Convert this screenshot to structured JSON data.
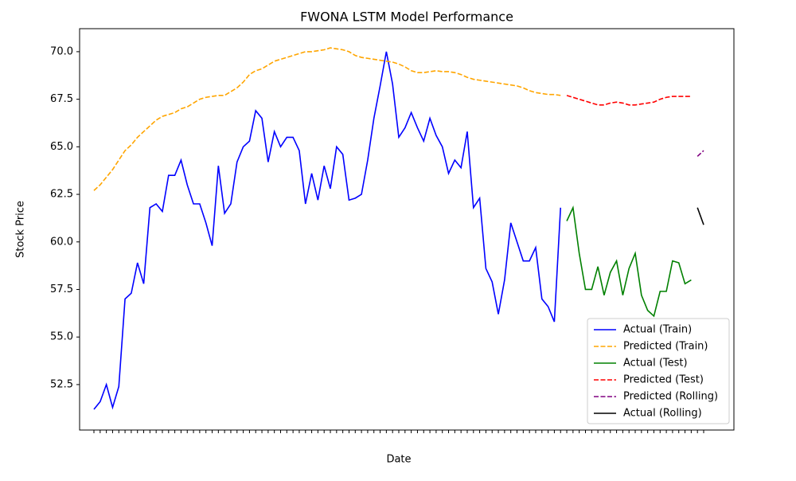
{
  "chart_data": {
    "type": "line",
    "title": "FWONA LSTM Model Performance",
    "x_label": "Date",
    "y_label": "Stock Price",
    "categories": [
      null,
      null,
      null,
      null,
      null,
      null,
      null,
      null,
      null,
      null,
      null,
      null,
      null,
      null,
      null,
      null,
      null,
      null,
      null,
      null,
      null,
      null,
      null,
      null,
      null,
      null,
      null,
      null,
      null,
      null,
      null,
      null,
      null,
      null,
      null,
      null,
      null,
      null,
      null,
      null,
      null,
      null,
      null,
      null,
      null,
      null,
      null,
      null,
      null,
      null,
      null,
      null,
      null,
      null,
      null,
      null,
      null,
      null,
      null,
      null,
      null,
      null,
      null,
      null,
      null,
      null,
      null,
      null,
      null,
      null,
      null,
      null,
      null,
      null,
      null,
      null,
      null,
      null,
      null,
      null,
      null,
      null,
      null,
      null,
      null,
      null,
      null,
      null,
      null,
      null,
      null,
      null,
      null,
      null,
      null,
      null,
      null,
      null,
      null
    ],
    "ylim": [
      50.11,
      71.21
    ],
    "yticks": [
      52.5,
      {
        "value": 55,
        "label": "55.0"
      },
      57.5,
      {
        "value": 60,
        "label": "60.0"
      },
      62.5,
      {
        "value": 65,
        "label": "65.0"
      },
      67.5,
      {
        "value": 70,
        "label": "70.0"
      }
    ],
    "legend": "lower right",
    "series": [
      {
        "name": "Actual (Train)",
        "color": "#0000ff",
        "linestyle": "solid",
        "values": [
          51.2,
          51.6,
          52.5,
          51.3,
          52.4,
          57.0,
          57.3,
          58.9,
          57.8,
          61.8,
          62.0,
          61.6,
          63.5,
          63.5,
          64.3,
          63.0,
          62.0,
          62.0,
          61.0,
          59.8,
          64.0,
          61.5,
          62.0,
          64.2,
          65.0,
          65.3,
          66.9,
          66.5,
          64.2,
          65.8,
          65.0,
          65.5,
          65.5,
          64.8,
          62.0,
          63.6,
          62.2,
          64.0,
          62.8,
          65.0,
          64.6,
          62.2,
          62.3,
          62.5,
          64.3,
          66.5,
          68.2,
          70.0,
          68.3,
          65.5,
          66.0,
          66.8,
          66.0,
          65.3,
          66.5,
          65.6,
          65.0,
          63.6,
          64.3,
          63.9,
          65.8,
          61.8,
          62.3,
          58.6,
          57.9,
          56.2,
          58.0,
          61.0,
          60.0,
          59.0,
          59.0,
          59.7,
          57.0,
          56.6,
          55.8,
          61.8,
          null,
          null,
          null,
          null,
          null,
          null,
          null,
          null,
          null,
          null,
          null,
          null,
          null,
          null,
          null,
          null,
          null,
          null,
          null,
          null,
          null,
          null,
          null
        ]
      },
      {
        "name": "Predicted (Train)",
        "color": "#ffa500",
        "linestyle": "dashed",
        "values": [
          62.7,
          63.0,
          63.4,
          63.8,
          64.3,
          64.8,
          65.1,
          65.5,
          65.8,
          66.1,
          66.4,
          66.6,
          66.7,
          66.8,
          67.0,
          67.1,
          67.3,
          67.5,
          67.6,
          67.65,
          67.7,
          67.7,
          67.9,
          68.1,
          68.4,
          68.8,
          69.0,
          69.1,
          69.3,
          69.5,
          69.6,
          69.7,
          69.8,
          69.9,
          70.0,
          70.0,
          70.05,
          70.1,
          70.2,
          70.15,
          70.1,
          70.0,
          69.8,
          69.7,
          69.65,
          69.6,
          69.55,
          69.5,
          69.45,
          69.35,
          69.2,
          69.0,
          68.9,
          68.9,
          68.95,
          69.0,
          68.95,
          68.95,
          68.9,
          68.8,
          68.65,
          68.55,
          68.5,
          68.45,
          68.4,
          68.35,
          68.3,
          68.25,
          68.2,
          68.1,
          67.95,
          67.85,
          67.8,
          67.75,
          67.75,
          67.7,
          null,
          null,
          null,
          null,
          null,
          null,
          null,
          null,
          null,
          null,
          null,
          null,
          null,
          null,
          null,
          null,
          null,
          null,
          null,
          null,
          null,
          null,
          null
        ]
      },
      {
        "name": "Actual (Test)",
        "color": "#008000",
        "linestyle": "solid",
        "values": [
          null,
          null,
          null,
          null,
          null,
          null,
          null,
          null,
          null,
          null,
          null,
          null,
          null,
          null,
          null,
          null,
          null,
          null,
          null,
          null,
          null,
          null,
          null,
          null,
          null,
          null,
          null,
          null,
          null,
          null,
          null,
          null,
          null,
          null,
          null,
          null,
          null,
          null,
          null,
          null,
          null,
          null,
          null,
          null,
          null,
          null,
          null,
          null,
          null,
          null,
          null,
          null,
          null,
          null,
          null,
          null,
          null,
          null,
          null,
          null,
          null,
          null,
          null,
          null,
          null,
          null,
          null,
          null,
          null,
          null,
          null,
          null,
          null,
          null,
          null,
          null,
          61.1,
          61.8,
          59.4,
          57.5,
          57.5,
          58.7,
          57.2,
          58.4,
          59.0,
          57.2,
          58.6,
          59.4,
          57.2,
          56.4,
          56.1,
          57.4,
          57.4,
          59.0,
          58.9,
          57.8,
          58.0,
          null,
          null
        ]
      },
      {
        "name": "Predicted (Test)",
        "color": "#ff0000",
        "linestyle": "dashed",
        "values": [
          null,
          null,
          null,
          null,
          null,
          null,
          null,
          null,
          null,
          null,
          null,
          null,
          null,
          null,
          null,
          null,
          null,
          null,
          null,
          null,
          null,
          null,
          null,
          null,
          null,
          null,
          null,
          null,
          null,
          null,
          null,
          null,
          null,
          null,
          null,
          null,
          null,
          null,
          null,
          null,
          null,
          null,
          null,
          null,
          null,
          null,
          null,
          null,
          null,
          null,
          null,
          null,
          null,
          null,
          null,
          null,
          null,
          null,
          null,
          null,
          null,
          null,
          null,
          null,
          null,
          null,
          null,
          null,
          null,
          null,
          null,
          null,
          null,
          null,
          null,
          null,
          67.7,
          67.6,
          67.5,
          67.4,
          67.3,
          67.2,
          67.2,
          67.3,
          67.35,
          67.3,
          67.2,
          67.2,
          67.25,
          67.3,
          67.35,
          67.5,
          67.6,
          67.65,
          67.65,
          67.65,
          67.65,
          null,
          null
        ]
      },
      {
        "name": "Predicted (Rolling)",
        "color": "#800080",
        "linestyle": "dashed",
        "values": [
          null,
          null,
          null,
          null,
          null,
          null,
          null,
          null,
          null,
          null,
          null,
          null,
          null,
          null,
          null,
          null,
          null,
          null,
          null,
          null,
          null,
          null,
          null,
          null,
          null,
          null,
          null,
          null,
          null,
          null,
          null,
          null,
          null,
          null,
          null,
          null,
          null,
          null,
          null,
          null,
          null,
          null,
          null,
          null,
          null,
          null,
          null,
          null,
          null,
          null,
          null,
          null,
          null,
          null,
          null,
          null,
          null,
          null,
          null,
          null,
          null,
          null,
          null,
          null,
          null,
          null,
          null,
          null,
          null,
          null,
          null,
          null,
          null,
          null,
          null,
          null,
          null,
          null,
          null,
          null,
          null,
          null,
          null,
          null,
          null,
          null,
          null,
          null,
          null,
          null,
          null,
          null,
          null,
          null,
          null,
          null,
          null,
          64.5,
          64.8
        ]
      },
      {
        "name": "Actual (Rolling)",
        "color": "#000000",
        "linestyle": "solid",
        "values": [
          null,
          null,
          null,
          null,
          null,
          null,
          null,
          null,
          null,
          null,
          null,
          null,
          null,
          null,
          null,
          null,
          null,
          null,
          null,
          null,
          null,
          null,
          null,
          null,
          null,
          null,
          null,
          null,
          null,
          null,
          null,
          null,
          null,
          null,
          null,
          null,
          null,
          null,
          null,
          null,
          null,
          null,
          null,
          null,
          null,
          null,
          null,
          null,
          null,
          null,
          null,
          null,
          null,
          null,
          null,
          null,
          null,
          null,
          null,
          null,
          null,
          null,
          null,
          null,
          null,
          null,
          null,
          null,
          null,
          null,
          null,
          null,
          null,
          null,
          null,
          null,
          null,
          null,
          null,
          null,
          null,
          null,
          null,
          null,
          null,
          null,
          null,
          null,
          null,
          null,
          null,
          null,
          null,
          null,
          null,
          null,
          null,
          61.8,
          60.9
        ]
      }
    ]
  }
}
